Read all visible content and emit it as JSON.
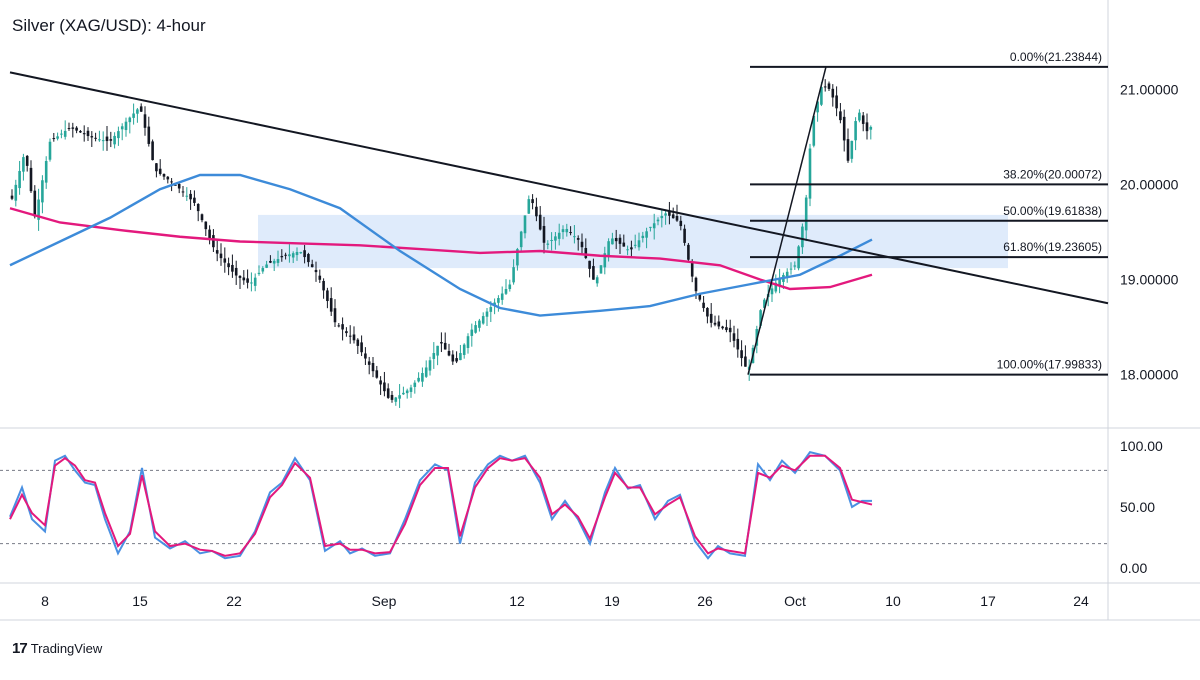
{
  "title": "Silver (XAG/USD): 4-hour",
  "brand": {
    "logo": "17",
    "name": "TradingView"
  },
  "colors": {
    "up_candle": "#26a69a",
    "down_candle": "#131722",
    "trendline": "#131722",
    "ma_fast": "#3d8bd9",
    "ma_slow": "#e3197d",
    "zone": "#dce9fb",
    "stoch_k": "#4a90e2",
    "stoch_d": "#e3197d",
    "fib_line": "#131722"
  },
  "chart_data": [
    {
      "type": "candlestick",
      "title": "Silver (XAG/USD): 4-hour",
      "x_ticks": [
        "8",
        "15",
        "22",
        "Sep",
        "12",
        "19",
        "26",
        "Oct",
        "10",
        "17",
        "24"
      ],
      "y_ticks": [
        "21.00000",
        "20.00000",
        "19.00000",
        "18.00000"
      ],
      "ylim": [
        17.5,
        21.6
      ],
      "price_path": [
        [
          0,
          20.05
        ],
        [
          12,
          19.85
        ],
        [
          25,
          20.35
        ],
        [
          35,
          19.65
        ],
        [
          50,
          20.45
        ],
        [
          70,
          20.6
        ],
        [
          90,
          20.5
        ],
        [
          110,
          20.45
        ],
        [
          125,
          20.65
        ],
        [
          140,
          20.82
        ],
        [
          155,
          20.15
        ],
        [
          175,
          20.0
        ],
        [
          195,
          19.8
        ],
        [
          215,
          19.3
        ],
        [
          235,
          19.05
        ],
        [
          250,
          18.95
        ],
        [
          265,
          19.15
        ],
        [
          285,
          19.25
        ],
        [
          300,
          19.3
        ],
        [
          318,
          19.05
        ],
        [
          335,
          18.55
        ],
        [
          355,
          18.35
        ],
        [
          375,
          18.0
        ],
        [
          390,
          17.72
        ],
        [
          410,
          17.85
        ],
        [
          425,
          18.05
        ],
        [
          440,
          18.35
        ],
        [
          455,
          18.1
        ],
        [
          470,
          18.45
        ],
        [
          490,
          18.7
        ],
        [
          510,
          18.95
        ],
        [
          520,
          19.45
        ],
        [
          530,
          19.9
        ],
        [
          545,
          19.35
        ],
        [
          565,
          19.55
        ],
        [
          580,
          19.4
        ],
        [
          595,
          18.95
        ],
        [
          610,
          19.45
        ],
        [
          630,
          19.3
        ],
        [
          650,
          19.55
        ],
        [
          665,
          19.7
        ],
        [
          680,
          19.6
        ],
        [
          695,
          18.9
        ],
        [
          710,
          18.55
        ],
        [
          730,
          18.45
        ],
        [
          748,
          18.02
        ],
        [
          762,
          18.75
        ],
        [
          778,
          19.0
        ],
        [
          795,
          19.15
        ],
        [
          805,
          19.7
        ],
        [
          812,
          20.65
        ],
        [
          822,
          21.05
        ],
        [
          830,
          21.0
        ],
        [
          840,
          20.7
        ],
        [
          848,
          20.25
        ],
        [
          858,
          20.8
        ],
        [
          866,
          20.55
        ],
        [
          872,
          20.62
        ]
      ],
      "ma_fast": [
        [
          10,
          19.15
        ],
        [
          60,
          19.4
        ],
        [
          110,
          19.65
        ],
        [
          160,
          19.95
        ],
        [
          200,
          20.1
        ],
        [
          240,
          20.1
        ],
        [
          290,
          19.95
        ],
        [
          340,
          19.75
        ],
        [
          400,
          19.3
        ],
        [
          460,
          18.9
        ],
        [
          500,
          18.7
        ],
        [
          540,
          18.62
        ],
        [
          600,
          18.67
        ],
        [
          650,
          18.72
        ],
        [
          700,
          18.85
        ],
        [
          750,
          18.95
        ],
        [
          800,
          19.05
        ],
        [
          840,
          19.25
        ],
        [
          872,
          19.42
        ]
      ],
      "ma_slow": [
        [
          10,
          19.75
        ],
        [
          60,
          19.6
        ],
        [
          120,
          19.52
        ],
        [
          180,
          19.45
        ],
        [
          240,
          19.4
        ],
        [
          300,
          19.38
        ],
        [
          360,
          19.36
        ],
        [
          420,
          19.32
        ],
        [
          480,
          19.28
        ],
        [
          540,
          19.3
        ],
        [
          600,
          19.25
        ],
        [
          660,
          19.22
        ],
        [
          720,
          19.15
        ],
        [
          760,
          19.0
        ],
        [
          790,
          18.9
        ],
        [
          830,
          18.92
        ],
        [
          872,
          19.05
        ]
      ],
      "trendline": {
        "from": [
          10,
          21.18
        ],
        "to": [
          1108,
          18.75
        ]
      },
      "zone": {
        "x_from": 258,
        "x_to": 1008,
        "y_from": 19.68,
        "y_to": 19.12
      },
      "swing_line": {
        "from": [
          748,
          17.99833
        ],
        "to": [
          826,
          21.23844
        ]
      },
      "fib_levels": [
        {
          "label": "0.00%(21.23844)",
          "price": 21.23844
        },
        {
          "label": "38.20%(20.00072)",
          "price": 20.00072
        },
        {
          "label": "50.00%(19.61838)",
          "price": 19.61838
        },
        {
          "label": "61.80%(19.23605)",
          "price": 19.23605
        },
        {
          "label": "100.00%(17.99833)",
          "price": 17.99833
        }
      ],
      "fib_span": {
        "x_from": 750,
        "x_to": 1108
      }
    },
    {
      "type": "line",
      "title": "",
      "y_ticks": [
        "100.00",
        "50.00",
        "0.00"
      ],
      "ylim": [
        0,
        100
      ],
      "dashed_levels": [
        80,
        20
      ],
      "series": [
        {
          "values": [
            [
              10,
              42
            ],
            [
              22,
              66
            ],
            [
              32,
              40
            ],
            [
              45,
              30
            ],
            [
              55,
              88
            ],
            [
              65,
              92
            ],
            [
              75,
              80
            ],
            [
              85,
              70
            ],
            [
              95,
              68
            ],
            [
              105,
              40
            ],
            [
              118,
              12
            ],
            [
              130,
              30
            ],
            [
              142,
              82
            ],
            [
              155,
              25
            ],
            [
              170,
              16
            ],
            [
              185,
              22
            ],
            [
              200,
              12
            ],
            [
              212,
              14
            ],
            [
              225,
              8
            ],
            [
              240,
              10
            ],
            [
              255,
              30
            ],
            [
              270,
              62
            ],
            [
              282,
              70
            ],
            [
              295,
              90
            ],
            [
              310,
              72
            ],
            [
              325,
              14
            ],
            [
              340,
              22
            ],
            [
              350,
              12
            ],
            [
              362,
              16
            ],
            [
              375,
              10
            ],
            [
              390,
              12
            ],
            [
              405,
              40
            ],
            [
              420,
              72
            ],
            [
              435,
              85
            ],
            [
              448,
              80
            ],
            [
              460,
              20
            ],
            [
              475,
              70
            ],
            [
              488,
              85
            ],
            [
              500,
              92
            ],
            [
              512,
              88
            ],
            [
              525,
              92
            ],
            [
              540,
              70
            ],
            [
              552,
              40
            ],
            [
              565,
              55
            ],
            [
              578,
              40
            ],
            [
              590,
              20
            ],
            [
              605,
              62
            ],
            [
              615,
              82
            ],
            [
              628,
              65
            ],
            [
              640,
              68
            ],
            [
              655,
              40
            ],
            [
              668,
              55
            ],
            [
              680,
              60
            ],
            [
              695,
              22
            ],
            [
              708,
              8
            ],
            [
              718,
              18
            ],
            [
              730,
              12
            ],
            [
              745,
              10
            ],
            [
              758,
              85
            ],
            [
              770,
              72
            ],
            [
              782,
              88
            ],
            [
              795,
              78
            ],
            [
              810,
              95
            ],
            [
              825,
              92
            ],
            [
              840,
              80
            ],
            [
              852,
              50
            ],
            [
              862,
              55
            ],
            [
              872,
              55
            ]
          ]
        },
        {
          "values": [
            [
              10,
              40
            ],
            [
              22,
              60
            ],
            [
              32,
              45
            ],
            [
              45,
              35
            ],
            [
              55,
              84
            ],
            [
              65,
              90
            ],
            [
              75,
              84
            ],
            [
              85,
              72
            ],
            [
              95,
              70
            ],
            [
              105,
              45
            ],
            [
              118,
              18
            ],
            [
              130,
              28
            ],
            [
              142,
              76
            ],
            [
              155,
              30
            ],
            [
              170,
              18
            ],
            [
              185,
              20
            ],
            [
              200,
              15
            ],
            [
              212,
              14
            ],
            [
              225,
              10
            ],
            [
              240,
              12
            ],
            [
              255,
              28
            ],
            [
              270,
              58
            ],
            [
              282,
              68
            ],
            [
              295,
              86
            ],
            [
              310,
              74
            ],
            [
              325,
              18
            ],
            [
              340,
              20
            ],
            [
              350,
              15
            ],
            [
              362,
              15
            ],
            [
              375,
              12
            ],
            [
              390,
              13
            ],
            [
              405,
              36
            ],
            [
              420,
              68
            ],
            [
              435,
              82
            ],
            [
              448,
              82
            ],
            [
              460,
              26
            ],
            [
              475,
              66
            ],
            [
              488,
              82
            ],
            [
              500,
              90
            ],
            [
              512,
              88
            ],
            [
              525,
              90
            ],
            [
              540,
              74
            ],
            [
              552,
              44
            ],
            [
              565,
              52
            ],
            [
              578,
              42
            ],
            [
              590,
              24
            ],
            [
              605,
              58
            ],
            [
              615,
              78
            ],
            [
              628,
              66
            ],
            [
              640,
              66
            ],
            [
              655,
              44
            ],
            [
              668,
              52
            ],
            [
              680,
              58
            ],
            [
              695,
              26
            ],
            [
              708,
              12
            ],
            [
              718,
              16
            ],
            [
              730,
              14
            ],
            [
              745,
              12
            ],
            [
              758,
              78
            ],
            [
              770,
              74
            ],
            [
              782,
              84
            ],
            [
              795,
              80
            ],
            [
              810,
              92
            ],
            [
              825,
              92
            ],
            [
              840,
              82
            ],
            [
              852,
              56
            ],
            [
              862,
              54
            ],
            [
              872,
              52
            ]
          ]
        }
      ]
    }
  ]
}
